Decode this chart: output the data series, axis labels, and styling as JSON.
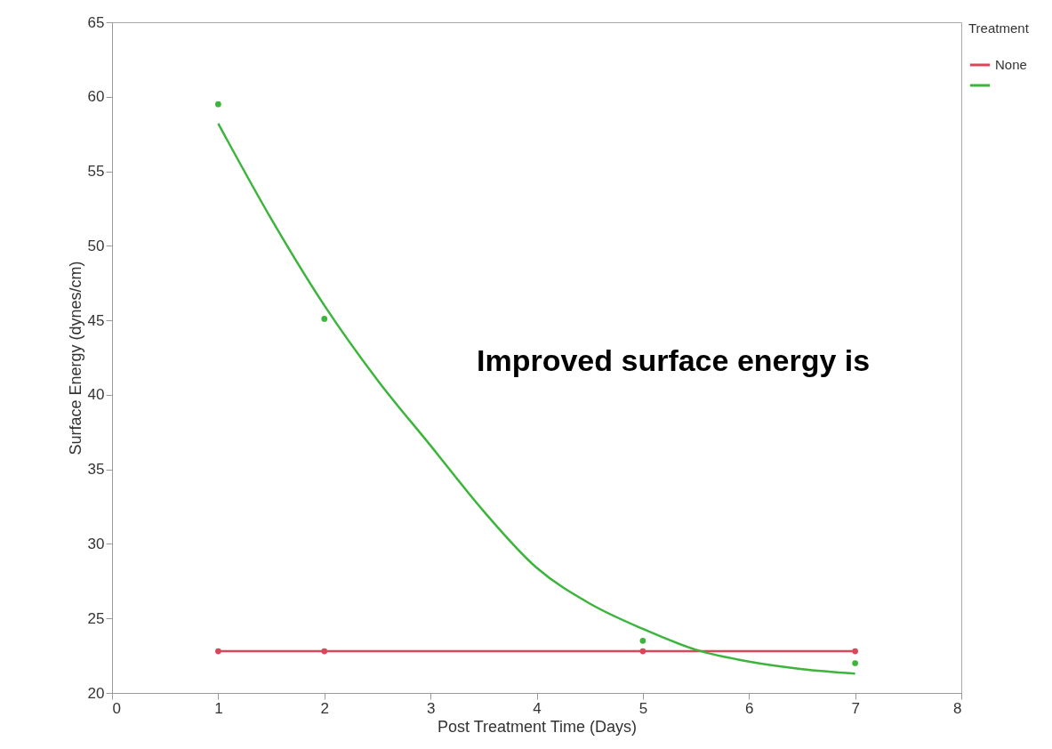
{
  "chart_data": {
    "type": "line",
    "xlabel": "Post Treatment Time (Days)",
    "ylabel": "Surface Energy (dynes/cm)",
    "legend_title": "Treatment",
    "legend": "top right",
    "grid": false,
    "x": [
      1,
      2,
      5,
      7
    ],
    "series": [
      {
        "name": "None",
        "color": "#d9475a",
        "marker": "circle",
        "values": [
          22.8,
          22.8,
          22.8,
          22.8
        ]
      },
      {
        "color": "#3db53d",
        "type": "scatter",
        "marker": "circle",
        "values": [
          59.5,
          45.1,
          23.5,
          22.0
        ]
      },
      {
        "color": "#3db53d",
        "type": "line",
        "marker": "none",
        "x": [
          1,
          1.5,
          2,
          2.5,
          3,
          3.5,
          4,
          4.5,
          5,
          5.5,
          6,
          6.5,
          7
        ],
        "values": [
          58.2,
          51.8,
          46.0,
          41.0,
          36.6,
          32.2,
          28.4,
          26.0,
          24.3,
          22.9,
          22.1,
          21.6,
          21.3
        ]
      }
    ],
    "xlim": [
      0,
      8
    ],
    "xticks": [
      0,
      1,
      2,
      3,
      4,
      5,
      6,
      7,
      8
    ],
    "ylim": [
      20,
      65
    ],
    "yticks": [
      20,
      25,
      30,
      35,
      40,
      45,
      50,
      55,
      60,
      65
    ],
    "annotations": [
      "Improved surface energy is"
    ]
  }
}
